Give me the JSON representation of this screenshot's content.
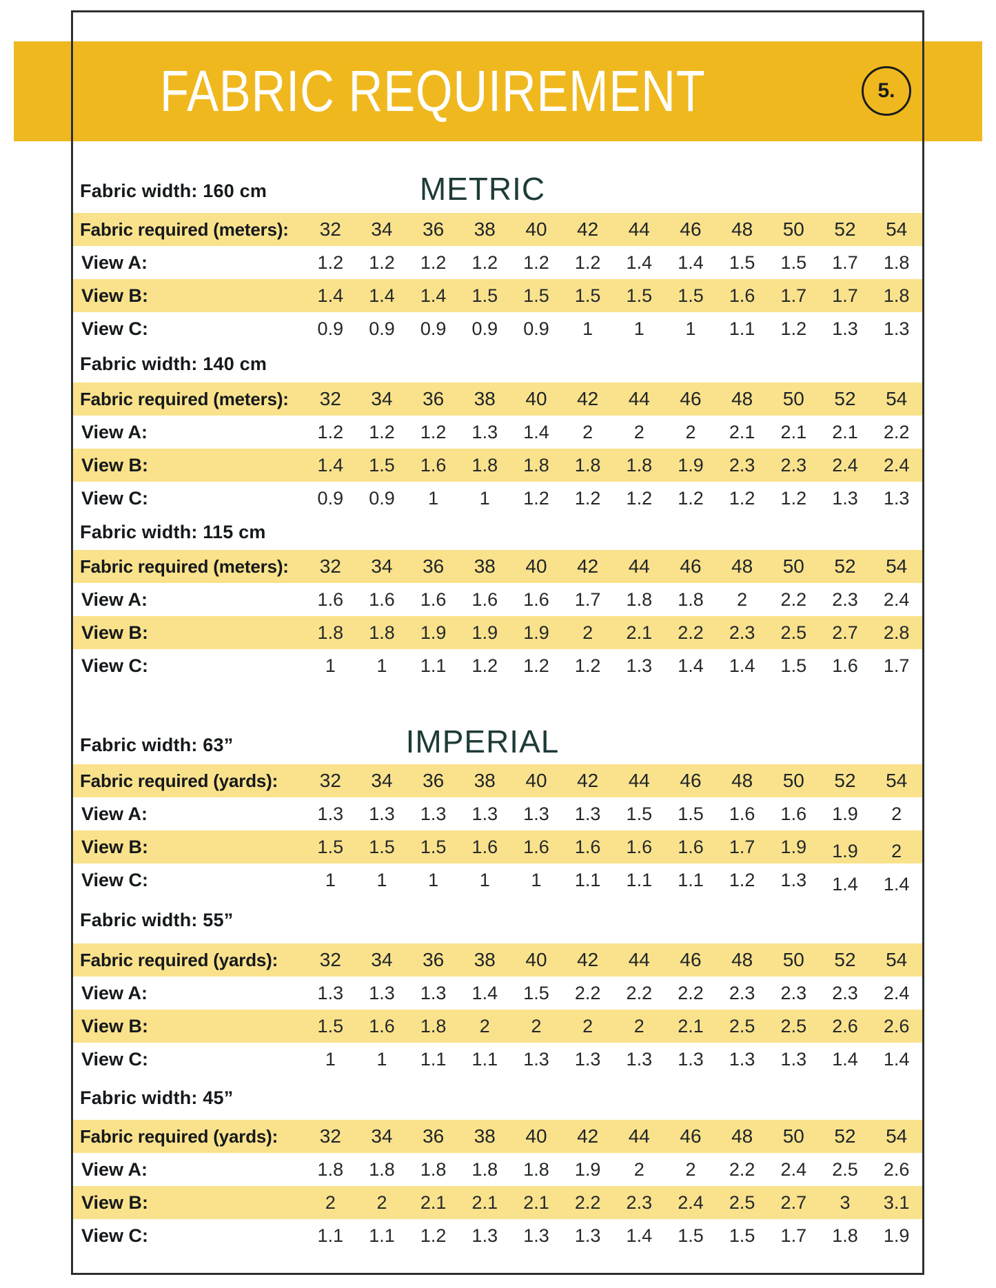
{
  "page": {
    "title": "FABRIC REQUIREMENT",
    "number": "5."
  },
  "colors": {
    "banner": "#F0B81F",
    "row_highlight": "#FAE28C",
    "heading_teal": "#1E3B38",
    "frame": "#2c3033"
  },
  "sizes": [
    "32",
    "34",
    "36",
    "38",
    "40",
    "42",
    "44",
    "46",
    "48",
    "50",
    "52",
    "54"
  ],
  "sections": [
    {
      "unit_title": "METRIC",
      "fabric_width": "Fabric width: 160 cm",
      "required_label": "Fabric required (meters):",
      "rows": [
        {
          "label": "View A:",
          "values": [
            "1.2",
            "1.2",
            "1.2",
            "1.2",
            "1.2",
            "1.2",
            "1.4",
            "1.4",
            "1.5",
            "1.5",
            "1.7",
            "1.8"
          ]
        },
        {
          "label": "View B:",
          "values": [
            "1.4",
            "1.4",
            "1.4",
            "1.5",
            "1.5",
            "1.5",
            "1.5",
            "1.5",
            "1.6",
            "1.7",
            "1.7",
            "1.8"
          ]
        },
        {
          "label": "View C:",
          "values": [
            "0.9",
            "0.9",
            "0.9",
            "0.9",
            "0.9",
            "1",
            "1",
            "1",
            "1.1",
            "1.2",
            "1.3",
            "1.3"
          ]
        }
      ]
    },
    {
      "unit_title": null,
      "fabric_width": "Fabric width: 140 cm",
      "required_label": "Fabric required (meters):",
      "rows": [
        {
          "label": "View A:",
          "values": [
            "1.2",
            "1.2",
            "1.2",
            "1.3",
            "1.4",
            "2",
            "2",
            "2",
            "2.1",
            "2.1",
            "2.1",
            "2.2"
          ]
        },
        {
          "label": "View B:",
          "values": [
            "1.4",
            "1.5",
            "1.6",
            "1.8",
            "1.8",
            "1.8",
            "1.8",
            "1.9",
            "2.3",
            "2.3",
            "2.4",
            "2.4"
          ]
        },
        {
          "label": "View C:",
          "values": [
            "0.9",
            "0.9",
            "1",
            "1",
            "1.2",
            "1.2",
            "1.2",
            "1.2",
            "1.2",
            "1.2",
            "1.3",
            "1.3"
          ]
        }
      ]
    },
    {
      "unit_title": null,
      "fabric_width": "Fabric width: 115 cm",
      "required_label": "Fabric required (meters):",
      "rows": [
        {
          "label": "View A:",
          "values": [
            "1.6",
            "1.6",
            "1.6",
            "1.6",
            "1.6",
            "1.7",
            "1.8",
            "1.8",
            "2",
            "2.2",
            "2.3",
            "2.4"
          ]
        },
        {
          "label": "View B:",
          "values": [
            "1.8",
            "1.8",
            "1.9",
            "1.9",
            "1.9",
            "2",
            "2.1",
            "2.2",
            "2.3",
            "2.5",
            "2.7",
            "2.8"
          ]
        },
        {
          "label": "View C:",
          "values": [
            "1",
            "1",
            "1.1",
            "1.2",
            "1.2",
            "1.2",
            "1.3",
            "1.4",
            "1.4",
            "1.5",
            "1.6",
            "1.7"
          ]
        }
      ]
    },
    {
      "unit_title": "IMPERIAL",
      "fabric_width": "Fabric width: 63”",
      "required_label": "Fabric required (yards):",
      "rows": [
        {
          "label": "View A:",
          "values": [
            "1.3",
            "1.3",
            "1.3",
            "1.3",
            "1.3",
            "1.3",
            "1.5",
            "1.5",
            "1.6",
            "1.6",
            "1.9",
            "2"
          ]
        },
        {
          "label": "View B:",
          "values": [
            "1.5",
            "1.5",
            "1.5",
            "1.6",
            "1.6",
            "1.6",
            "1.6",
            "1.6",
            "1.7",
            "1.9",
            "1.9",
            "2"
          ]
        },
        {
          "label": "View C:",
          "values": [
            "1",
            "1",
            "1",
            "1",
            "1",
            "1.1",
            "1.1",
            "1.1",
            "1.2",
            "1.3",
            "1.4",
            "1.4"
          ]
        }
      ]
    },
    {
      "unit_title": null,
      "fabric_width": "Fabric width: 55”",
      "required_label": "Fabric required (yards):",
      "rows": [
        {
          "label": "View A:",
          "values": [
            "1.3",
            "1.3",
            "1.3",
            "1.4",
            "1.5",
            "2.2",
            "2.2",
            "2.2",
            "2.3",
            "2.3",
            "2.3",
            "2.4"
          ]
        },
        {
          "label": "View B:",
          "values": [
            "1.5",
            "1.6",
            "1.8",
            "2",
            "2",
            "2",
            "2",
            "2.1",
            "2.5",
            "2.5",
            "2.6",
            "2.6"
          ]
        },
        {
          "label": "View C:",
          "values": [
            "1",
            "1",
            "1.1",
            "1.1",
            "1.3",
            "1.3",
            "1.3",
            "1.3",
            "1.3",
            "1.3",
            "1.4",
            "1.4"
          ]
        }
      ]
    },
    {
      "unit_title": null,
      "fabric_width": "Fabric width: 45”",
      "required_label": "Fabric required (yards):",
      "rows": [
        {
          "label": "View A:",
          "values": [
            "1.8",
            "1.8",
            "1.8",
            "1.8",
            "1.8",
            "1.9",
            "2",
            "2",
            "2.2",
            "2.4",
            "2.5",
            "2.6"
          ]
        },
        {
          "label": "View B:",
          "values": [
            "2",
            "2",
            "2.1",
            "2.1",
            "2.1",
            "2.2",
            "2.3",
            "2.4",
            "2.5",
            "2.7",
            "3",
            "3.1"
          ]
        },
        {
          "label": "View C:",
          "values": [
            "1.1",
            "1.1",
            "1.2",
            "1.3",
            "1.3",
            "1.3",
            "1.4",
            "1.5",
            "1.5",
            "1.7",
            "1.8",
            "1.9"
          ]
        }
      ]
    }
  ]
}
